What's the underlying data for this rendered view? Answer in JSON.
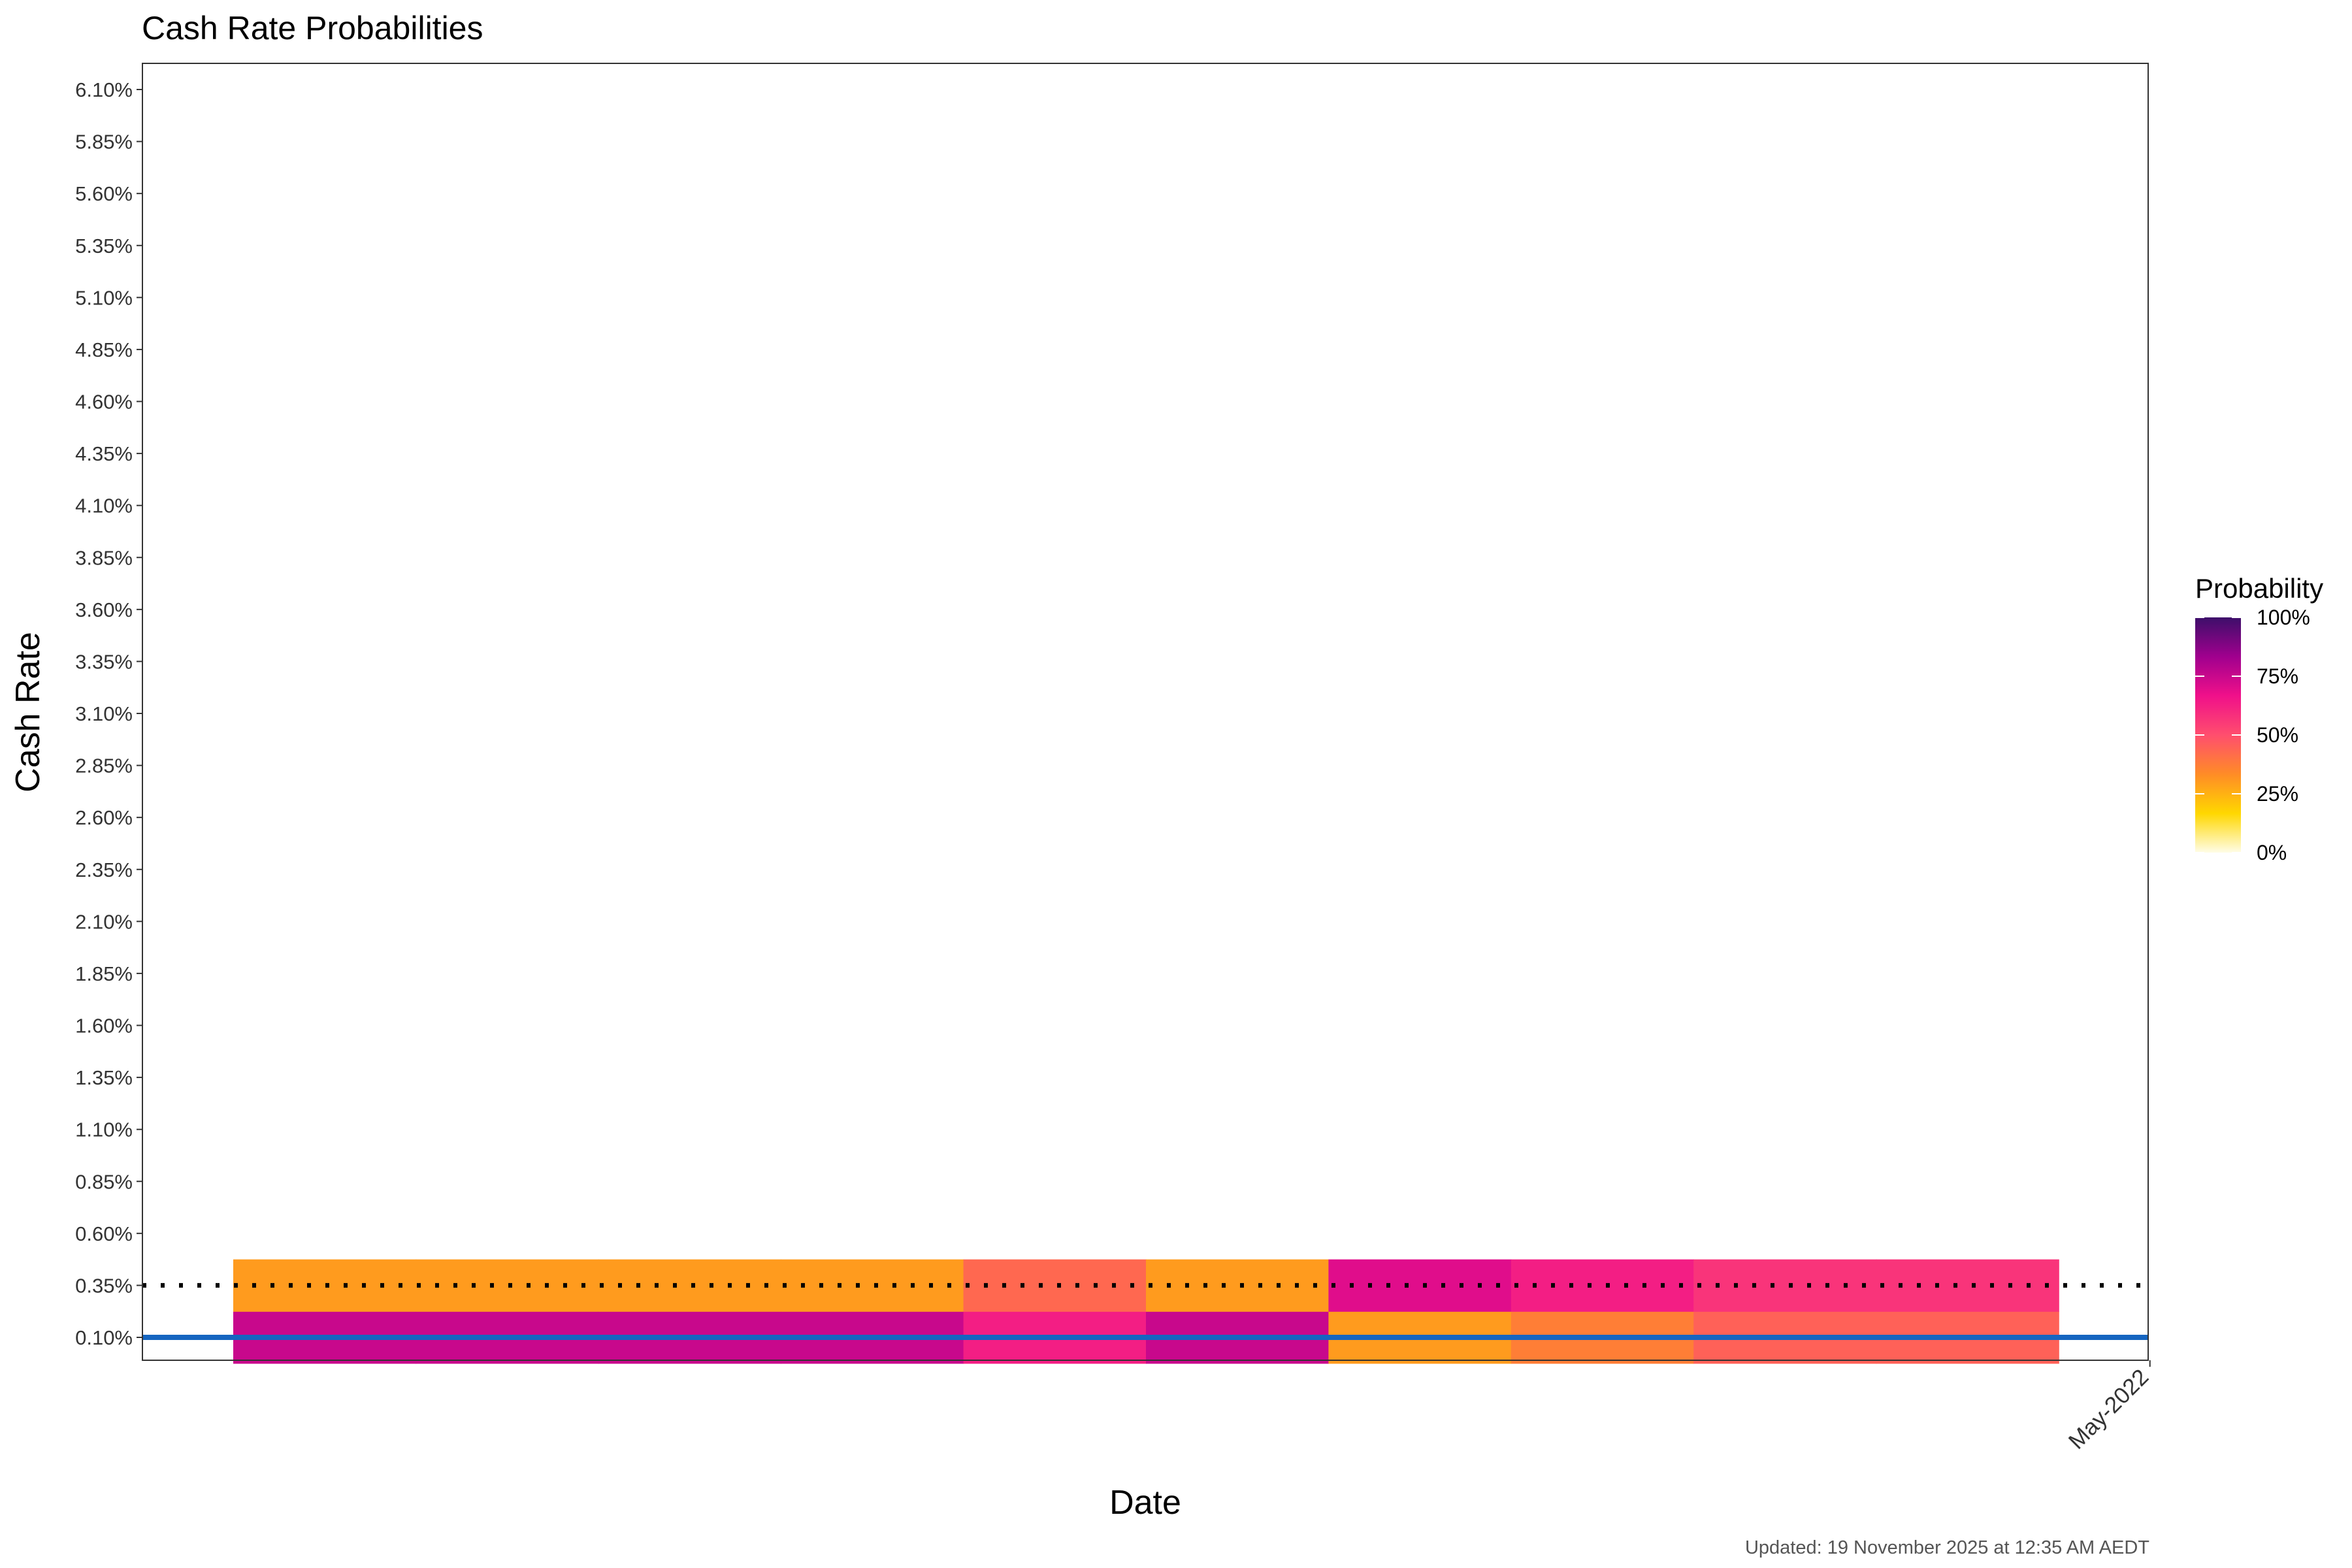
{
  "chart_data": {
    "type": "heatmap",
    "title": "Cash Rate Probabilities",
    "xlabel": "Date",
    "ylabel": "Cash Rate",
    "caption": "Updated: 19 November 2025 at 12:35 AM AEDT",
    "y_levels": [
      "0.10%",
      "0.35%",
      "0.60%",
      "0.85%",
      "1.10%",
      "1.35%",
      "1.60%",
      "1.85%",
      "2.10%",
      "2.35%",
      "2.60%",
      "2.85%",
      "3.10%",
      "3.35%",
      "3.60%",
      "3.85%",
      "4.10%",
      "4.35%",
      "4.60%",
      "4.85%",
      "5.10%",
      "5.35%",
      "5.60%",
      "5.85%",
      "6.10%"
    ],
    "y_values": [
      0.1,
      0.35,
      0.6,
      0.85,
      1.1,
      1.35,
      1.6,
      1.85,
      2.1,
      2.35,
      2.6,
      2.85,
      3.1,
      3.35,
      3.6,
      3.85,
      4.1,
      4.35,
      4.6,
      4.85,
      5.1,
      5.35,
      5.6,
      5.85,
      6.1
    ],
    "x_tick_labels": [
      "May-2022"
    ],
    "x_tick_months": [
      10
    ],
    "x_range_months": [
      -0.5,
      11.0
    ],
    "month_cells": [
      {
        "month": 0,
        "p010": 75,
        "p035": 30
      },
      {
        "month": 1,
        "p010": 75,
        "p035": 30
      },
      {
        "month": 2,
        "p010": 75,
        "p035": 30
      },
      {
        "month": 3,
        "p010": 75,
        "p035": 30
      },
      {
        "month": 4,
        "p010": 63,
        "p035": 43
      },
      {
        "month": 5,
        "p010": 75,
        "p035": 30
      },
      {
        "month": 6,
        "p010": 30,
        "p035": 70
      },
      {
        "month": 7,
        "p010": 37,
        "p035": 63
      },
      {
        "month": 8,
        "p010": 45,
        "p035": 57
      },
      {
        "month": 9,
        "p010": 45,
        "p035": 57
      }
    ],
    "reference_lines": [
      {
        "value": 0.1,
        "style": "solid",
        "color": "#1565C0"
      },
      {
        "value": 0.35,
        "style": "dotted",
        "color": "#000000"
      }
    ],
    "legend": {
      "title": "Probability",
      "labels": [
        "100%",
        "75%",
        "50%",
        "25%",
        "0%"
      ],
      "values": [
        100,
        75,
        50,
        25,
        0
      ],
      "position": "right",
      "colors": [
        "#FFFDE7",
        "#FFD700",
        "#FF8C26",
        "#FF4E6E",
        "#F0108A",
        "#A0008E",
        "#3D0F6A"
      ]
    }
  }
}
